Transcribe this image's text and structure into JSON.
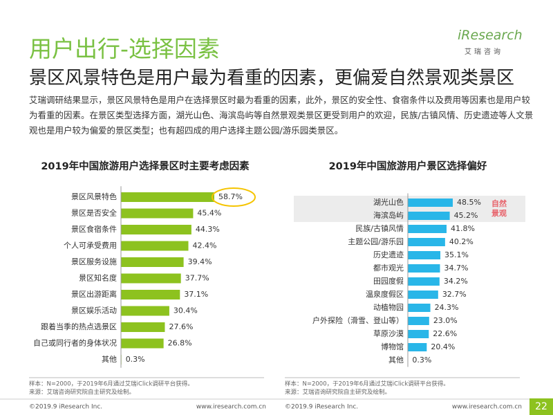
{
  "header": {
    "title": "用户出行-选择因素",
    "subtitle": "景区风景特色是用户最为看重的因素，更偏爱自然景观类景区",
    "logo": "iResearch",
    "logo_sub": "艾瑞咨询"
  },
  "body": "艾瑞调研结果显示，景区风景特色是用户在选择景区时最为看重的因素，此外，景区的安全性、食宿条件以及费用等因素也是用户较为看重的因素。在景区类型选择方面，湖光山色、海滨岛屿等自然景观类景区更受到用户的欢迎，民族/古镇风情、历史遗迹等人文景观也是用户较为偏爱的景区类型；也有超四成的用户选择主题公园/游乐园类景区。",
  "chart_data": [
    {
      "type": "bar",
      "orientation": "horizontal",
      "title": "2019年中国旅游用户选择景区时主要考虑因素",
      "color": "#8dc21f",
      "categories": [
        "景区风景特色",
        "景区是否安全",
        "景区食宿条件",
        "个人可承受费用",
        "景区服务设施",
        "景区知名度",
        "景区出游距离",
        "景区娱乐活动",
        "跟着当季的热点选景区",
        "自己或同行者的身体状况",
        "其他"
      ],
      "values": [
        58.7,
        45.4,
        44.3,
        42.4,
        39.4,
        37.7,
        37.1,
        30.4,
        27.6,
        26.8,
        0.3
      ],
      "value_labels": [
        "58.7%",
        "45.4%",
        "44.3%",
        "42.4%",
        "39.4%",
        "37.7%",
        "37.1%",
        "30.4%",
        "27.6%",
        "26.8%",
        "0.3%"
      ],
      "notes": [
        "样本：N=2000，于2019年6月通过艾瑞iClick调研平台获得。",
        "来源：艾瑞咨询研究院自主研究及绘制。"
      ]
    },
    {
      "type": "bar",
      "orientation": "horizontal",
      "title": "2019年中国旅游用户景区选择偏好",
      "color": "#29b6e8",
      "categories": [
        "湖光山色",
        "海滨岛屿",
        "民族/古镇风情",
        "主题公园/游乐园",
        "历史遗迹",
        "都市观光",
        "田园度假",
        "温泉度假区",
        "动植物园",
        "户外探险（滑雪、登山等）",
        "草原沙漠",
        "博物馆",
        "其他"
      ],
      "values": [
        48.5,
        45.2,
        41.8,
        40.2,
        35.1,
        34.7,
        34.2,
        32.7,
        24.3,
        23.0,
        22.6,
        20.4,
        0.3
      ],
      "value_labels": [
        "48.5%",
        "45.2%",
        "41.8%",
        "40.2%",
        "35.1%",
        "34.7%",
        "34.2%",
        "32.7%",
        "24.3%",
        "23.0%",
        "22.6%",
        "20.4%",
        "0.3%"
      ],
      "annotation": "自然景观",
      "notes": [
        "样本：N=2000，于2019年6月通过艾瑞iClick调研平台获得。",
        "来源：艾瑞咨询研究院自主研究及绘制。"
      ]
    }
  ],
  "footer": {
    "copyright": "©2019.9 iResearch Inc.",
    "url": "www.iresearch.com.cn",
    "page": "22"
  }
}
